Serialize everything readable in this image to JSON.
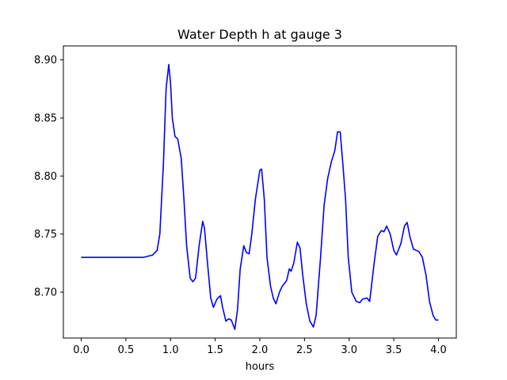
{
  "chart_data": {
    "type": "line",
    "title": "Water Depth h at gauge 3",
    "xlabel": "hours",
    "ylabel": "",
    "xlim": [
      -0.2,
      4.2
    ],
    "ylim": [
      8.6605,
      8.912
    ],
    "grid": false,
    "xticks": [
      0.0,
      0.5,
      1.0,
      1.5,
      2.0,
      2.5,
      3.0,
      3.5,
      4.0
    ],
    "xtick_labels": [
      "0.0",
      "0.5",
      "1.0",
      "1.5",
      "2.0",
      "2.5",
      "3.0",
      "3.5",
      "4.0"
    ],
    "yticks": [
      8.7,
      8.75,
      8.8,
      8.85,
      8.9
    ],
    "ytick_labels": [
      "8.70",
      "8.75",
      "8.80",
      "8.85",
      "8.90"
    ],
    "series": [
      {
        "color": "#0000ff",
        "points": [
          [
            0.0,
            8.73
          ],
          [
            0.1,
            8.73
          ],
          [
            0.3,
            8.73
          ],
          [
            0.5,
            8.73
          ],
          [
            0.7,
            8.73
          ],
          [
            0.8,
            8.732
          ],
          [
            0.85,
            8.736
          ],
          [
            0.88,
            8.75
          ],
          [
            0.92,
            8.81
          ],
          [
            0.95,
            8.875
          ],
          [
            0.98,
            8.896
          ],
          [
            1.0,
            8.88
          ],
          [
            1.02,
            8.85
          ],
          [
            1.05,
            8.834
          ],
          [
            1.08,
            8.832
          ],
          [
            1.12,
            8.815
          ],
          [
            1.15,
            8.78
          ],
          [
            1.18,
            8.74
          ],
          [
            1.22,
            8.712
          ],
          [
            1.25,
            8.709
          ],
          [
            1.28,
            8.712
          ],
          [
            1.32,
            8.74
          ],
          [
            1.36,
            8.761
          ],
          [
            1.38,
            8.755
          ],
          [
            1.42,
            8.72
          ],
          [
            1.45,
            8.695
          ],
          [
            1.48,
            8.687
          ],
          [
            1.52,
            8.694
          ],
          [
            1.56,
            8.697
          ],
          [
            1.58,
            8.688
          ],
          [
            1.62,
            8.675
          ],
          [
            1.65,
            8.677
          ],
          [
            1.68,
            8.676
          ],
          [
            1.72,
            8.668
          ],
          [
            1.75,
            8.685
          ],
          [
            1.78,
            8.72
          ],
          [
            1.82,
            8.74
          ],
          [
            1.85,
            8.734
          ],
          [
            1.88,
            8.733
          ],
          [
            1.91,
            8.75
          ],
          [
            1.95,
            8.78
          ],
          [
            2.0,
            8.805
          ],
          [
            2.02,
            8.806
          ],
          [
            2.05,
            8.78
          ],
          [
            2.08,
            8.73
          ],
          [
            2.12,
            8.705
          ],
          [
            2.15,
            8.695
          ],
          [
            2.18,
            8.69
          ],
          [
            2.22,
            8.7
          ],
          [
            2.25,
            8.705
          ],
          [
            2.3,
            8.71
          ],
          [
            2.33,
            8.72
          ],
          [
            2.35,
            8.718
          ],
          [
            2.38,
            8.725
          ],
          [
            2.42,
            8.743
          ],
          [
            2.45,
            8.738
          ],
          [
            2.48,
            8.715
          ],
          [
            2.52,
            8.69
          ],
          [
            2.56,
            8.675
          ],
          [
            2.6,
            8.67
          ],
          [
            2.63,
            8.68
          ],
          [
            2.68,
            8.73
          ],
          [
            2.72,
            8.775
          ],
          [
            2.76,
            8.798
          ],
          [
            2.8,
            8.812
          ],
          [
            2.84,
            8.822
          ],
          [
            2.87,
            8.838
          ],
          [
            2.9,
            8.838
          ],
          [
            2.93,
            8.81
          ],
          [
            2.96,
            8.78
          ],
          [
            2.99,
            8.73
          ],
          [
            3.03,
            8.7
          ],
          [
            3.08,
            8.692
          ],
          [
            3.12,
            8.691
          ],
          [
            3.15,
            8.694
          ],
          [
            3.2,
            8.695
          ],
          [
            3.23,
            8.692
          ],
          [
            3.28,
            8.725
          ],
          [
            3.32,
            8.748
          ],
          [
            3.36,
            8.753
          ],
          [
            3.39,
            8.752
          ],
          [
            3.42,
            8.757
          ],
          [
            3.46,
            8.75
          ],
          [
            3.5,
            8.736
          ],
          [
            3.53,
            8.732
          ],
          [
            3.58,
            8.742
          ],
          [
            3.62,
            8.757
          ],
          [
            3.65,
            8.76
          ],
          [
            3.68,
            8.748
          ],
          [
            3.72,
            8.737
          ],
          [
            3.78,
            8.735
          ],
          [
            3.82,
            8.73
          ],
          [
            3.86,
            8.715
          ],
          [
            3.9,
            8.692
          ],
          [
            3.94,
            8.68
          ],
          [
            3.97,
            8.676
          ],
          [
            4.0,
            8.676
          ]
        ]
      }
    ]
  }
}
